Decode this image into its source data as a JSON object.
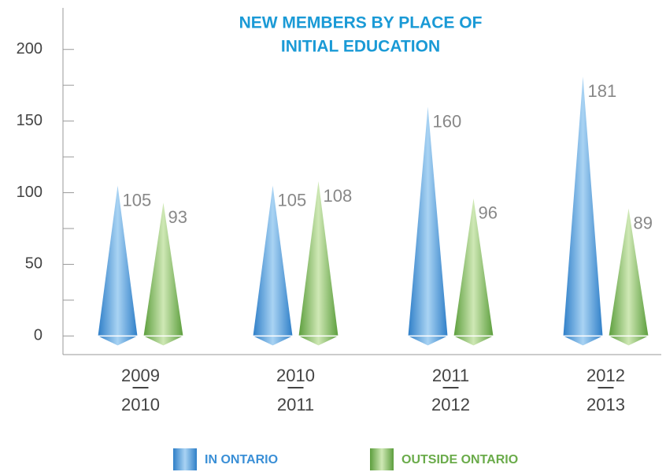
{
  "chart_data": {
    "type": "cone-bar",
    "title": [
      "NEW MEMBERS BY PLACE OF",
      "INITIAL EDUCATION"
    ],
    "categories": [
      [
        "2009",
        "2010"
      ],
      [
        "2010",
        "2011"
      ],
      [
        "2011",
        "2012"
      ],
      [
        "2012",
        "2013"
      ]
    ],
    "series": [
      {
        "name": "IN ONTARIO",
        "color": "#3a8fd6",
        "values": [
          105,
          105,
          160,
          181
        ]
      },
      {
        "name": "OUTSIDE ONTARIO",
        "color": "#6aab4a",
        "values": [
          93,
          108,
          96,
          89
        ]
      }
    ],
    "ylim": [
      -13,
      229
    ],
    "yticks": [
      0,
      50,
      100,
      150,
      200
    ],
    "minor_yticks": [
      25,
      75,
      125,
      175
    ]
  }
}
